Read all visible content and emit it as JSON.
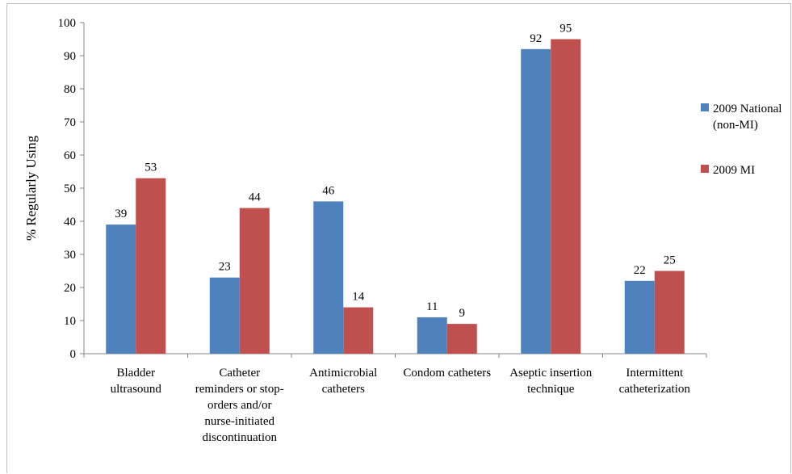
{
  "chart_data": {
    "type": "bar",
    "title": "",
    "xlabel": "",
    "ylabel": "% Regularly Using",
    "ylim": [
      0,
      100
    ],
    "yticks": [
      0,
      10,
      20,
      30,
      40,
      50,
      60,
      70,
      80,
      90,
      100
    ],
    "grid": false,
    "legend_position": "right",
    "categories": [
      [
        "Bladder",
        "ultrasound"
      ],
      [
        "Catheter",
        "reminders or stop-",
        "orders and/or",
        "nurse-initiated",
        "discontinuation"
      ],
      [
        "Antimicrobial",
        "catheters"
      ],
      [
        "Condom catheters"
      ],
      [
        "Aseptic insertion",
        "technique"
      ],
      [
        "Intermittent",
        "catheterization"
      ]
    ],
    "series": [
      {
        "name_lines": [
          "2009 National",
          "(non-MI)"
        ],
        "color": "#4f81bd",
        "values": [
          39,
          23,
          46,
          11,
          92,
          22
        ]
      },
      {
        "name_lines": [
          "2009 MI"
        ],
        "color": "#c0504d",
        "values": [
          53,
          44,
          14,
          9,
          95,
          25
        ]
      }
    ]
  }
}
